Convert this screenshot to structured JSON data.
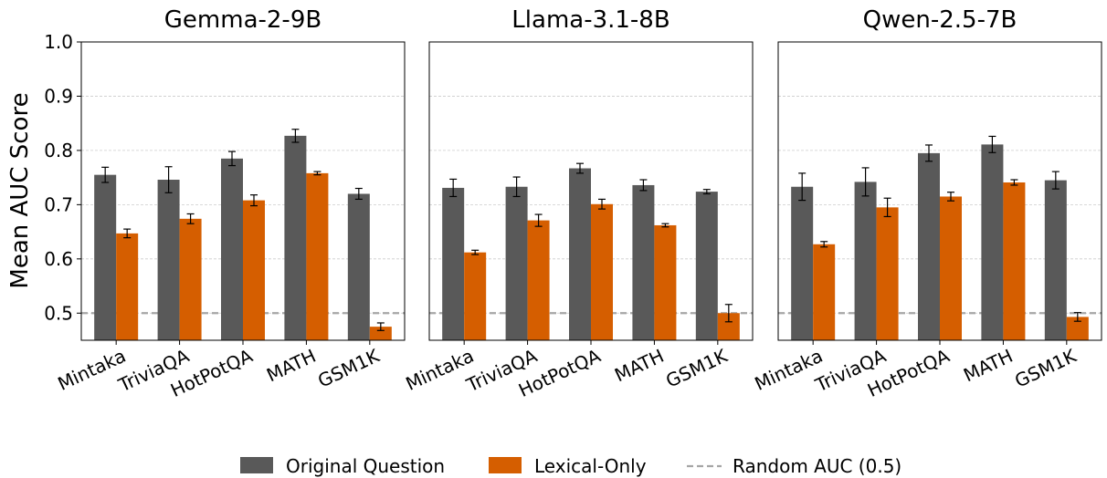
{
  "chart_data": {
    "type": "bar",
    "ylabel": "Mean AUC Score",
    "ylim": [
      0.45,
      1.0
    ],
    "yticks": [
      "0.5",
      "0.6",
      "0.7",
      "0.8",
      "0.9",
      "1.0"
    ],
    "grid": "horizontal dashed",
    "legend_position": "bottom-center",
    "reference_line": {
      "label": "Random AUC (0.5)",
      "y": 0.5,
      "color": "#a6a6a6"
    },
    "series_meta": [
      {
        "name": "Original Question",
        "color": "#595959"
      },
      {
        "name": "Lexical-Only",
        "color": "#d55e00"
      }
    ],
    "categories": [
      "Mintaka",
      "TriviaQA",
      "HotPotQA",
      "MATH",
      "GSM1K"
    ],
    "panels": [
      {
        "title": "Gemma-2-9B",
        "series": [
          {
            "name": "Original Question",
            "values": [
              0.755,
              0.746,
              0.785,
              0.827,
              0.72
            ],
            "errors": [
              0.014,
              0.024,
              0.013,
              0.012,
              0.01
            ]
          },
          {
            "name": "Lexical-Only",
            "values": [
              0.647,
              0.674,
              0.708,
              0.758,
              0.475
            ],
            "errors": [
              0.008,
              0.009,
              0.01,
              0.003,
              0.007
            ]
          }
        ]
      },
      {
        "title": "Llama-3.1-8B",
        "series": [
          {
            "name": "Original Question",
            "values": [
              0.731,
              0.733,
              0.767,
              0.736,
              0.724
            ],
            "errors": [
              0.016,
              0.018,
              0.009,
              0.01,
              0.004
            ]
          },
          {
            "name": "Lexical-Only",
            "values": [
              0.612,
              0.671,
              0.701,
              0.662,
              0.5
            ],
            "errors": [
              0.004,
              0.011,
              0.009,
              0.003,
              0.016
            ]
          }
        ]
      },
      {
        "title": "Qwen-2.5-7B",
        "series": [
          {
            "name": "Original Question",
            "values": [
              0.733,
              0.742,
              0.795,
              0.811,
              0.745
            ],
            "errors": [
              0.025,
              0.026,
              0.015,
              0.015,
              0.016
            ]
          },
          {
            "name": "Lexical-Only",
            "values": [
              0.627,
              0.695,
              0.715,
              0.741,
              0.493
            ],
            "errors": [
              0.005,
              0.017,
              0.008,
              0.005,
              0.008
            ]
          }
        ]
      }
    ]
  }
}
